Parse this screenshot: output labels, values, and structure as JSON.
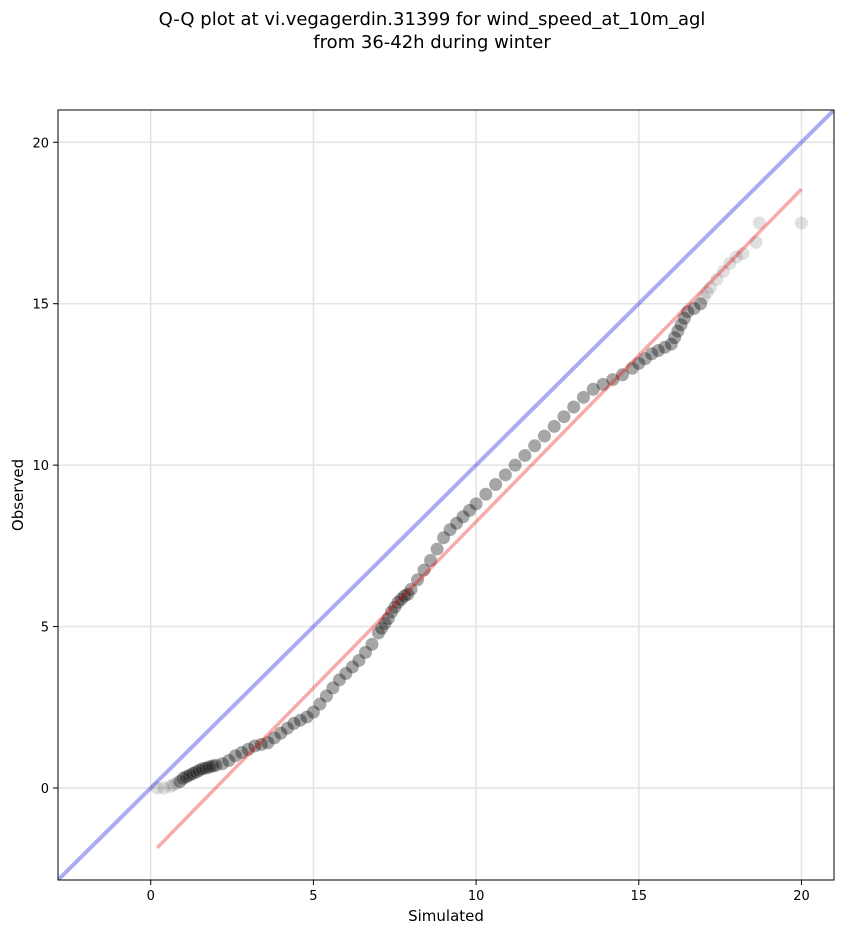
{
  "chart_data": {
    "type": "scatter",
    "title_lines": [
      "Q-Q plot at vi.vegagerdin.31399 for wind_speed_at_10m_agl",
      "from 36-42h during winter"
    ],
    "xlabel": "Simulated",
    "ylabel": "Observed",
    "xlim": [
      -2.85,
      21
    ],
    "ylim": [
      -2.85,
      21
    ],
    "xticks": [
      "0",
      "5",
      "10",
      "15",
      "20"
    ],
    "yticks": [
      "0",
      "5",
      "10",
      "15",
      "20"
    ],
    "xtick_values": [
      0,
      5,
      10,
      15,
      20
    ],
    "ytick_values": [
      0,
      5,
      10,
      15,
      20
    ],
    "grid": true,
    "legend": "none",
    "colors": {
      "points": "#000000",
      "identity_line": "#0000dd",
      "fit_line": "#ee0000"
    },
    "identity_line": {
      "x": [
        -2.85,
        21
      ],
      "y": [
        -2.85,
        21
      ]
    },
    "fit_line": {
      "x": [
        0.2,
        20.0
      ],
      "y": [
        -1.85,
        18.55
      ]
    },
    "series": [
      {
        "x": [
          0.2,
          0.4,
          0.6,
          0.7,
          0.8,
          0.9,
          1.0,
          1.1,
          1.2,
          1.3,
          1.4,
          1.5,
          1.6,
          1.7,
          1.8,
          1.9,
          2.0,
          2.2,
          2.4,
          2.6,
          2.8,
          3.0,
          3.2,
          3.4,
          3.6,
          3.8,
          4.0,
          4.2,
          4.4,
          4.6,
          4.8,
          5.0,
          5.2,
          5.4,
          5.6,
          5.8,
          6.0,
          6.2,
          6.4,
          6.6,
          6.8,
          7.0,
          7.1,
          7.2,
          7.3,
          7.4,
          7.5,
          7.6,
          7.7,
          7.8,
          7.9,
          8.0,
          8.2,
          8.4,
          8.6,
          8.8,
          9.0,
          9.2,
          9.4,
          9.6,
          9.8,
          10.0,
          10.3,
          10.6,
          10.9,
          11.2,
          11.5,
          11.8,
          12.1,
          12.4,
          12.7,
          13.0,
          13.3,
          13.6,
          13.9,
          14.2,
          14.5,
          14.8,
          15.0,
          15.2,
          15.4,
          15.6,
          15.8,
          16.0,
          16.1,
          16.2,
          16.3,
          16.4,
          16.5,
          16.7,
          16.9,
          17.0,
          17.1,
          17.2,
          17.4,
          17.6,
          17.8,
          18.0,
          18.2,
          18.6,
          18.7,
          20.0
        ],
        "y": [
          0.0,
          0.0,
          0.05,
          0.1,
          0.15,
          0.2,
          0.3,
          0.35,
          0.4,
          0.45,
          0.5,
          0.55,
          0.6,
          0.62,
          0.65,
          0.68,
          0.7,
          0.75,
          0.85,
          1.0,
          1.1,
          1.2,
          1.3,
          1.35,
          1.4,
          1.55,
          1.7,
          1.85,
          2.0,
          2.1,
          2.2,
          2.35,
          2.6,
          2.85,
          3.1,
          3.35,
          3.55,
          3.75,
          3.95,
          4.2,
          4.45,
          4.8,
          4.95,
          5.1,
          5.25,
          5.45,
          5.6,
          5.75,
          5.85,
          5.95,
          6.0,
          6.15,
          6.45,
          6.75,
          7.05,
          7.4,
          7.75,
          8.0,
          8.2,
          8.4,
          8.6,
          8.8,
          9.1,
          9.4,
          9.7,
          10.0,
          10.3,
          10.6,
          10.9,
          11.2,
          11.5,
          11.8,
          12.1,
          12.35,
          12.5,
          12.65,
          12.8,
          13.0,
          13.15,
          13.3,
          13.45,
          13.55,
          13.65,
          13.75,
          13.95,
          14.15,
          14.35,
          14.55,
          14.75,
          14.85,
          15.0,
          15.2,
          15.35,
          15.5,
          15.75,
          16.0,
          16.25,
          16.45,
          16.55,
          16.9,
          17.5,
          17.5
        ]
      }
    ]
  }
}
